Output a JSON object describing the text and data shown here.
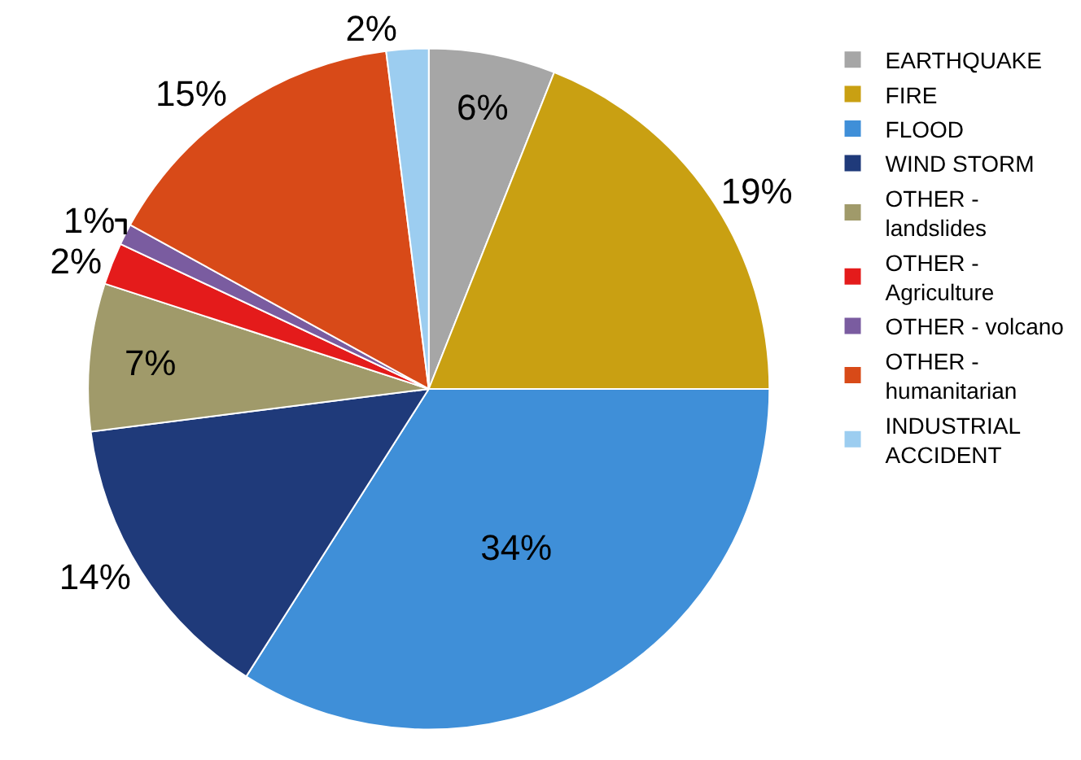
{
  "chart_data": {
    "type": "pie",
    "categories": [
      "EARTHQUAKE",
      "FIRE",
      "FLOOD",
      "WIND STORM",
      "OTHER -\nlandslides",
      "OTHER -\nAgriculture",
      "OTHER - volcano",
      "OTHER -\nhumanitarian",
      "INDUSTRIAL\nACCIDENT"
    ],
    "values": [
      6,
      19,
      34,
      14,
      7,
      2,
      1,
      15,
      2
    ],
    "value_labels": [
      "6%",
      "19%",
      "34%",
      "14%",
      "7%",
      "2%",
      "1%",
      "15%",
      "2%"
    ],
    "colors": [
      "#a6a6a6",
      "#c9a012",
      "#3f8fd8",
      "#1f3a7a",
      "#a09a6a",
      "#e41b1b",
      "#7a5ca0",
      "#d84a18",
      "#9ccdf0"
    ],
    "legend": "right"
  }
}
